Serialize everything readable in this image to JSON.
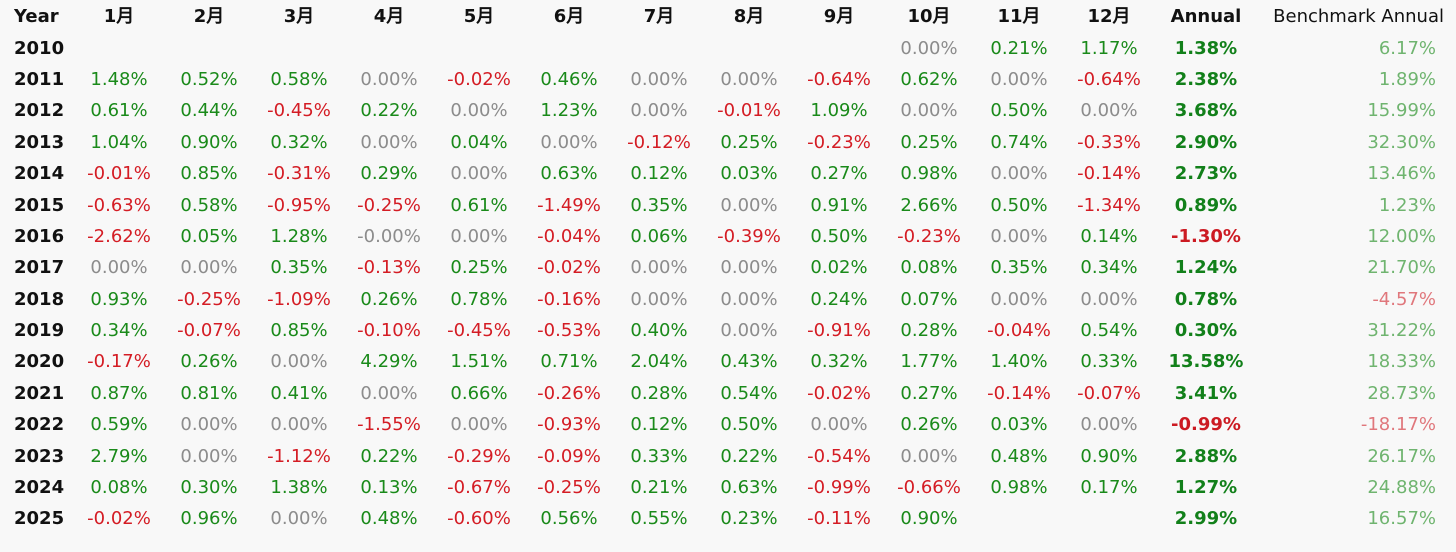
{
  "headers": {
    "year": "Year",
    "months": [
      "1月",
      "2月",
      "3月",
      "4月",
      "5月",
      "6月",
      "7月",
      "8月",
      "9月",
      "10月",
      "11月",
      "12月"
    ],
    "annual": "Annual",
    "benchmark": "Benchmark Annual"
  },
  "rows": [
    {
      "year": "2010",
      "months": [
        "",
        "",
        "",
        "",
        "",
        "",
        "",
        "",
        "",
        "0.00%",
        "0.21%",
        "1.17%"
      ],
      "annual": "1.38%",
      "benchmark": "6.17%"
    },
    {
      "year": "2011",
      "months": [
        "1.48%",
        "0.52%",
        "0.58%",
        "0.00%",
        "-0.02%",
        "0.46%",
        "0.00%",
        "0.00%",
        "-0.64%",
        "0.62%",
        "0.00%",
        "-0.64%"
      ],
      "annual": "2.38%",
      "benchmark": "1.89%"
    },
    {
      "year": "2012",
      "months": [
        "0.61%",
        "0.44%",
        "-0.45%",
        "0.22%",
        "0.00%",
        "1.23%",
        "0.00%",
        "-0.01%",
        "1.09%",
        "0.00%",
        "0.50%",
        "0.00%"
      ],
      "annual": "3.68%",
      "benchmark": "15.99%"
    },
    {
      "year": "2013",
      "months": [
        "1.04%",
        "0.90%",
        "0.32%",
        "0.00%",
        "0.04%",
        "0.00%",
        "-0.12%",
        "0.25%",
        "-0.23%",
        "0.25%",
        "0.74%",
        "-0.33%"
      ],
      "annual": "2.90%",
      "benchmark": "32.30%"
    },
    {
      "year": "2014",
      "months": [
        "-0.01%",
        "0.85%",
        "-0.31%",
        "0.29%",
        "0.00%",
        "0.63%",
        "0.12%",
        "0.03%",
        "0.27%",
        "0.98%",
        "0.00%",
        "-0.14%"
      ],
      "annual": "2.73%",
      "benchmark": "13.46%"
    },
    {
      "year": "2015",
      "months": [
        "-0.63%",
        "0.58%",
        "-0.95%",
        "-0.25%",
        "0.61%",
        "-1.49%",
        "0.35%",
        "0.00%",
        "0.91%",
        "2.66%",
        "0.50%",
        "-1.34%"
      ],
      "annual": "0.89%",
      "benchmark": "1.23%"
    },
    {
      "year": "2016",
      "months": [
        "-2.62%",
        "0.05%",
        "1.28%",
        "-0.00%",
        "0.00%",
        "-0.04%",
        "0.06%",
        "-0.39%",
        "0.50%",
        "-0.23%",
        "0.00%",
        "0.14%"
      ],
      "annual": "-1.30%",
      "benchmark": "12.00%"
    },
    {
      "year": "2017",
      "months": [
        "0.00%",
        "0.00%",
        "0.35%",
        "-0.13%",
        "0.25%",
        "-0.02%",
        "0.00%",
        "0.00%",
        "0.02%",
        "0.08%",
        "0.35%",
        "0.34%"
      ],
      "annual": "1.24%",
      "benchmark": "21.70%"
    },
    {
      "year": "2018",
      "months": [
        "0.93%",
        "-0.25%",
        "-1.09%",
        "0.26%",
        "0.78%",
        "-0.16%",
        "0.00%",
        "0.00%",
        "0.24%",
        "0.07%",
        "0.00%",
        "0.00%"
      ],
      "annual": "0.78%",
      "benchmark": "-4.57%"
    },
    {
      "year": "2019",
      "months": [
        "0.34%",
        "-0.07%",
        "0.85%",
        "-0.10%",
        "-0.45%",
        "-0.53%",
        "0.40%",
        "0.00%",
        "-0.91%",
        "0.28%",
        "-0.04%",
        "0.54%"
      ],
      "annual": "0.30%",
      "benchmark": "31.22%"
    },
    {
      "year": "2020",
      "months": [
        "-0.17%",
        "0.26%",
        "0.00%",
        "4.29%",
        "1.51%",
        "0.71%",
        "2.04%",
        "0.43%",
        "0.32%",
        "1.77%",
        "1.40%",
        "0.33%"
      ],
      "annual": "13.58%",
      "benchmark": "18.33%"
    },
    {
      "year": "2021",
      "months": [
        "0.87%",
        "0.81%",
        "0.41%",
        "0.00%",
        "0.66%",
        "-0.26%",
        "0.28%",
        "0.54%",
        "-0.02%",
        "0.27%",
        "-0.14%",
        "-0.07%"
      ],
      "annual": "3.41%",
      "benchmark": "28.73%"
    },
    {
      "year": "2022",
      "months": [
        "0.59%",
        "0.00%",
        "0.00%",
        "-1.55%",
        "0.00%",
        "-0.93%",
        "0.12%",
        "0.50%",
        "0.00%",
        "0.26%",
        "0.03%",
        "0.00%"
      ],
      "annual": "-0.99%",
      "benchmark": "-18.17%"
    },
    {
      "year": "2023",
      "months": [
        "2.79%",
        "0.00%",
        "-1.12%",
        "0.22%",
        "-0.29%",
        "-0.09%",
        "0.33%",
        "0.22%",
        "-0.54%",
        "0.00%",
        "0.48%",
        "0.90%"
      ],
      "annual": "2.88%",
      "benchmark": "26.17%"
    },
    {
      "year": "2024",
      "months": [
        "0.08%",
        "0.30%",
        "1.38%",
        "0.13%",
        "-0.67%",
        "-0.25%",
        "0.21%",
        "0.63%",
        "-0.99%",
        "-0.66%",
        "0.98%",
        "0.17%"
      ],
      "annual": "1.27%",
      "benchmark": "24.88%"
    },
    {
      "year": "2025",
      "months": [
        "-0.02%",
        "0.96%",
        "0.00%",
        "0.48%",
        "-0.60%",
        "0.56%",
        "0.55%",
        "0.23%",
        "-0.11%",
        "0.90%",
        "",
        ""
      ],
      "annual": "2.99%",
      "benchmark": "16.57%"
    }
  ],
  "colors": {
    "positive": "#1a8a1a",
    "negative": "#d41c24",
    "zero": "#8c8c8c",
    "benchmark_positive": "#6fb46f",
    "benchmark_negative": "#e0777c"
  }
}
